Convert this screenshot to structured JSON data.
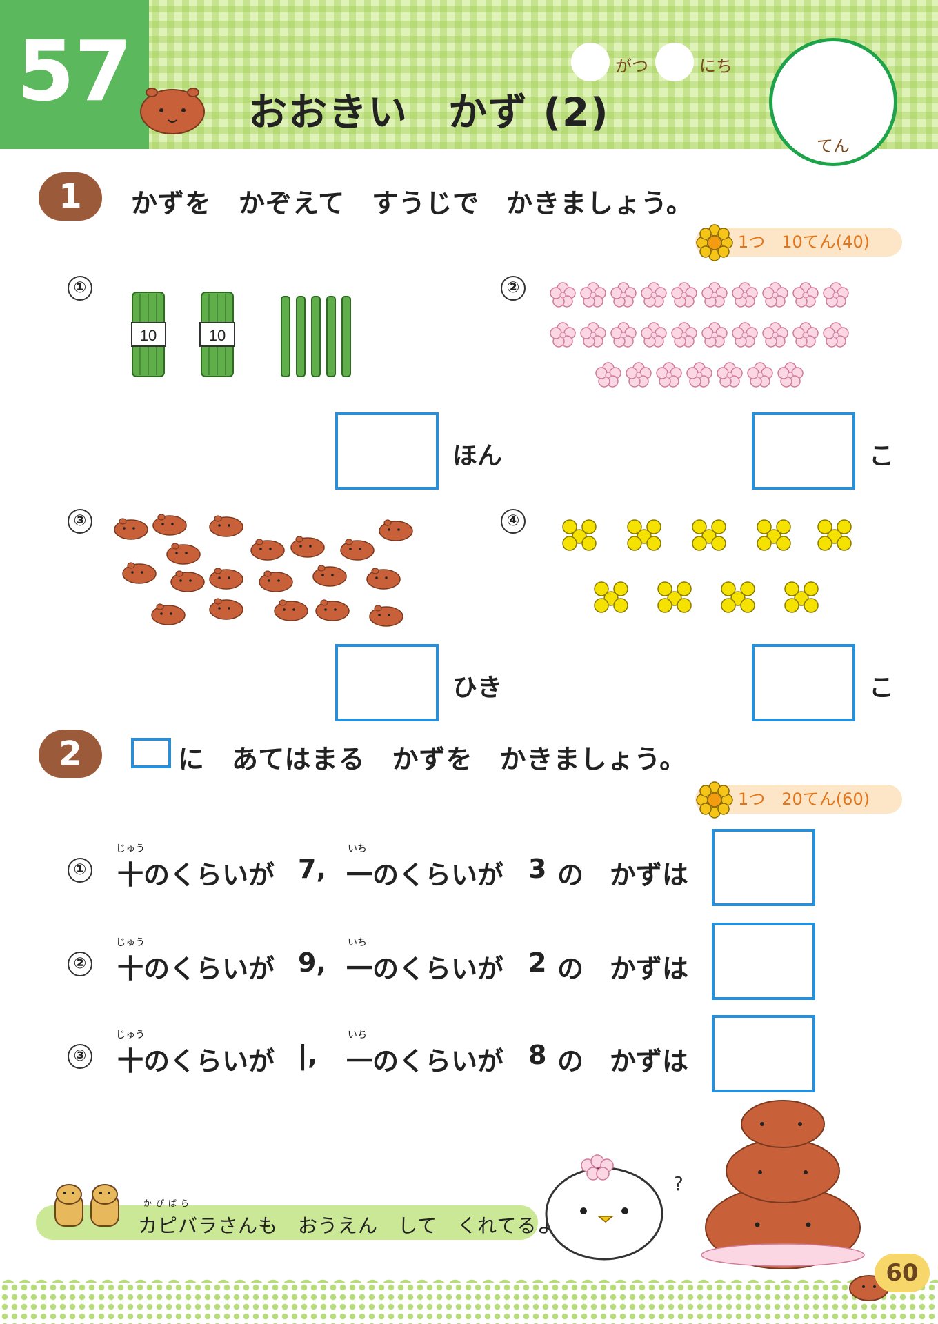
{
  "header": {
    "lesson_number": "57",
    "title": "おおきい　かず (2)",
    "month_label": "がつ",
    "day_label": "にち",
    "score_label": "てん"
  },
  "section1": {
    "number": "1",
    "instruction": "かずを　かぞえて　すうじで　かきましょう。",
    "points": "1つ　10てん(40)",
    "questions": [
      {
        "num": "①",
        "unit": "ほん",
        "bundle_label": "10"
      },
      {
        "num": "②",
        "unit": "こ"
      },
      {
        "num": "③",
        "unit": "ひき"
      },
      {
        "num": "④",
        "unit": "こ"
      }
    ]
  },
  "section2": {
    "number": "2",
    "instruction": "に　あてはまる　かずを　かきましょう。",
    "points": "1つ　20てん(60)",
    "ruby_tens": "じゅう",
    "ruby_ones": "いち",
    "questions": [
      {
        "num": "①",
        "tens_part": "十のくらいが",
        "tens": "7,",
        "ones_part": "一のくらいが",
        "ones": "3",
        "tail": "の　かずは"
      },
      {
        "num": "②",
        "tens_part": "十のくらいが",
        "tens": "9,",
        "ones_part": "一のくらいが",
        "ones": "2",
        "tail": "の　かずは"
      },
      {
        "num": "③",
        "tens_part": "十のくらいが",
        "tens": "|,",
        "ones_part": "一のくらいが",
        "ones": "8",
        "tail": "の　かずは"
      }
    ]
  },
  "footer": {
    "ruby": "かぴばら",
    "message": "カピバラさんも　おうえん　して　くれてるよ。",
    "page_number": "60",
    "question_mark": "?"
  },
  "colors": {
    "header_green": "#5cb85c",
    "box_blue": "#2a8fd6",
    "badge_brown": "#9b5a3a",
    "capybara": "#c8603a"
  }
}
